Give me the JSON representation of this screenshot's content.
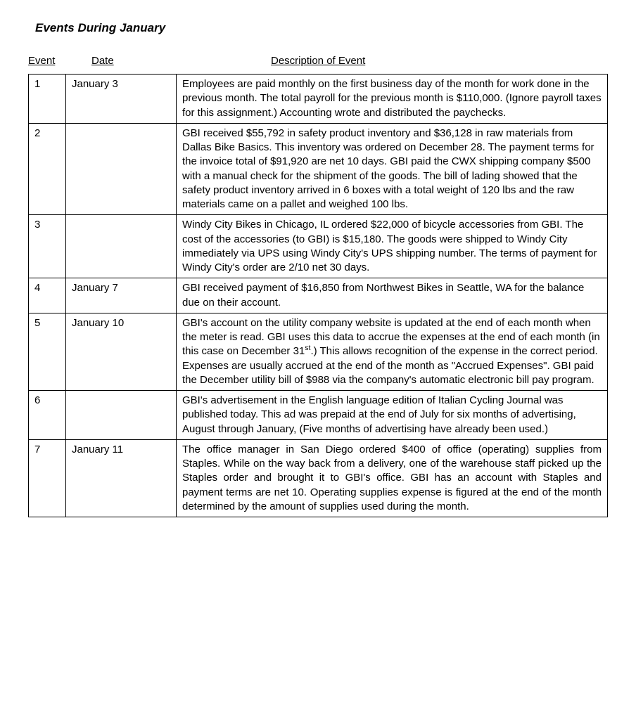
{
  "title": "Events During January",
  "headers": {
    "event": "Event",
    "date": "Date",
    "description": "Description of Event"
  },
  "rows": [
    {
      "event": "1",
      "date": "January 3",
      "description": "Employees are paid monthly on the first business day of the month for work done in the previous month.  The total payroll for the previous month is $110,000. (Ignore payroll taxes for this assignment.) Accounting wrote and distributed the paychecks.",
      "justify": false
    },
    {
      "event": "2",
      "date": "",
      "description": "GBI received $55,792 in safety product inventory and $36,128 in raw materials from Dallas Bike Basics.  This inventory was ordered on December 28.  The payment terms for the invoice total of $91,920 are net 10 days.  GBI paid the CWX shipping company $500 with a manual check for the shipment of the goods. The bill of lading showed that the safety product inventory arrived in 6 boxes with a total weight of 120 lbs and the raw materials came on a pallet and weighed 100 lbs.",
      "justify": false
    },
    {
      "event": "3",
      "date": "",
      "description": "Windy City Bikes in Chicago, IL ordered $22,000 of bicycle accessories from GBI.  The cost of the accessories (to GBI) is $15,180.  The goods were shipped to Windy City immediately via UPS using Windy City's UPS shipping number.  The terms of payment for Windy City's order are 2/10 net 30 days.",
      "justify": false
    },
    {
      "event": "4",
      "date": "January 7",
      "description": "GBI received payment of $16,850 from Northwest Bikes in Seattle, WA for the balance due on their account.",
      "justify": false
    },
    {
      "event": "5",
      "date": "January 10",
      "description": "GBI's account on the utility company website is updated at the end of each month when the meter is read.  GBI uses this data to accrue the expenses at the end of each month (in this case on December 31<sup>st</sup>.)  This allows recognition of the expense in the correct period.  Expenses are usually accrued at the end of the month as \"Accrued Expenses\". GBI paid the December utility bill of $988 via the company's automatic electronic bill pay program.",
      "justify": false
    },
    {
      "event": "6",
      "date": "",
      "description": "GBI's advertisement in the English language edition of Italian Cycling Journal was published today.  This ad was prepaid at the end of July for six months of advertising, August through January, (Five months of advertising have already been used.)",
      "justify": false
    },
    {
      "event": "7",
      "date": "January 11",
      "description": "The office manager in San Diego ordered $400 of office (operating) supplies from Staples. While on the way back from a delivery, one of the warehouse staff picked up the Staples order and brought it to GBI's office.  GBI has an account with Staples and payment terms are net 10. Operating supplies expense is figured at the end of the month determined by the amount of supplies used during the month.",
      "justify": true
    }
  ]
}
